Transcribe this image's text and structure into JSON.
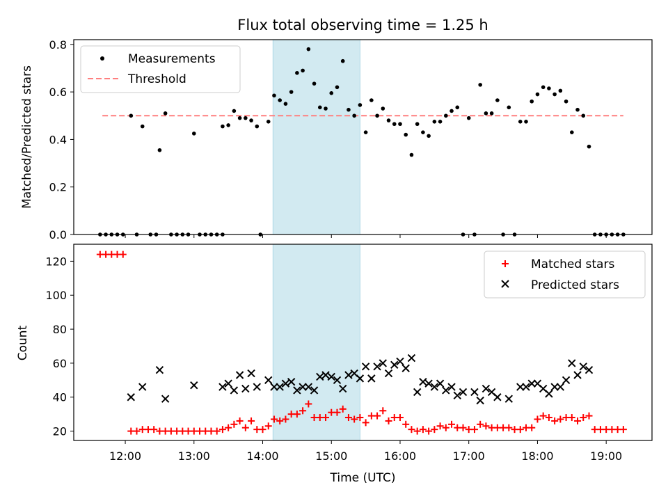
{
  "chart_data": [
    {
      "type": "scatter",
      "title": "Flux total observing time = 1.25 h",
      "xlabel": "",
      "ylabel": "Matched/Predicted stars",
      "xlim": [
        "11:15",
        "19:40"
      ],
      "ylim": [
        0,
        0.82
      ],
      "yticks": [
        "0.0",
        "0.2",
        "0.4",
        "0.6",
        "0.8"
      ],
      "shaded_span": [
        "14:09",
        "15:25"
      ],
      "shaded_color": "#add8e6",
      "legend": {
        "placement": "top-left",
        "entries": [
          "Measurements",
          "Threshold"
        ]
      },
      "threshold": {
        "name": "Threshold",
        "value": 0.5,
        "x_range": [
          "11:40",
          "19:15"
        ],
        "color": "#ff7f7f"
      },
      "series": [
        {
          "name": "Measurements",
          "color": "#000000",
          "points": [
            [
              "11:38",
              0
            ],
            [
              "11:43",
              0
            ],
            [
              "11:48",
              0
            ],
            [
              "11:53",
              0
            ],
            [
              "11:58",
              0
            ],
            [
              "12:05",
              0.5
            ],
            [
              "12:10",
              0
            ],
            [
              "12:15",
              0.455
            ],
            [
              "12:22",
              0
            ],
            [
              "12:27",
              0
            ],
            [
              "12:30",
              0.355
            ],
            [
              "12:35",
              0.51
            ],
            [
              "12:40",
              0
            ],
            [
              "12:45",
              0
            ],
            [
              "12:50",
              0
            ],
            [
              "12:55",
              0
            ],
            [
              "13:00",
              0.425
            ],
            [
              "13:05",
              0
            ],
            [
              "13:10",
              0
            ],
            [
              "13:15",
              0
            ],
            [
              "13:20",
              0
            ],
            [
              "13:25",
              0
            ],
            [
              "13:25",
              0.455
            ],
            [
              "13:30",
              0.46
            ],
            [
              "13:35",
              0.52
            ],
            [
              "13:40",
              0.49
            ],
            [
              "13:45",
              0.49
            ],
            [
              "13:50",
              0.48
            ],
            [
              "13:55",
              0.455
            ],
            [
              "13:58",
              0
            ],
            [
              "14:05",
              0.475
            ],
            [
              "14:10",
              0.585
            ],
            [
              "14:15",
              0.565
            ],
            [
              "14:20",
              0.55
            ],
            [
              "14:25",
              0.6
            ],
            [
              "14:30",
              0.68
            ],
            [
              "14:35",
              0.69
            ],
            [
              "14:40",
              0.78
            ],
            [
              "14:45",
              0.635
            ],
            [
              "14:50",
              0.535
            ],
            [
              "14:55",
              0.53
            ],
            [
              "15:00",
              0.595
            ],
            [
              "15:05",
              0.62
            ],
            [
              "15:10",
              0.73
            ],
            [
              "15:15",
              0.525
            ],
            [
              "15:20",
              0.5
            ],
            [
              "15:25",
              0.545
            ],
            [
              "15:30",
              0.43
            ],
            [
              "15:35",
              0.565
            ],
            [
              "15:40",
              0.5
            ],
            [
              "15:45",
              0.53
            ],
            [
              "15:50",
              0.48
            ],
            [
              "15:55",
              0.465
            ],
            [
              "16:00",
              0.465
            ],
            [
              "16:05",
              0.42
            ],
            [
              "16:10",
              0.335
            ],
            [
              "16:15",
              0.465
            ],
            [
              "16:20",
              0.43
            ],
            [
              "16:25",
              0.415
            ],
            [
              "16:30",
              0.475
            ],
            [
              "16:35",
              0.475
            ],
            [
              "16:40",
              0.5
            ],
            [
              "16:45",
              0.52
            ],
            [
              "16:50",
              0.535
            ],
            [
              "16:55",
              0
            ],
            [
              "17:00",
              0.49
            ],
            [
              "17:05",
              0
            ],
            [
              "17:10",
              0.63
            ],
            [
              "17:15",
              0.51
            ],
            [
              "17:20",
              0.51
            ],
            [
              "17:25",
              0.565
            ],
            [
              "17:30",
              0
            ],
            [
              "17:35",
              0.535
            ],
            [
              "17:40",
              0
            ],
            [
              "17:45",
              0.475
            ],
            [
              "17:50",
              0.475
            ],
            [
              "17:55",
              0.56
            ],
            [
              "18:00",
              0.59
            ],
            [
              "18:05",
              0.62
            ],
            [
              "18:10",
              0.615
            ],
            [
              "18:15",
              0.59
            ],
            [
              "18:20",
              0.605
            ],
            [
              "18:25",
              0.56
            ],
            [
              "18:30",
              0.43
            ],
            [
              "18:35",
              0.525
            ],
            [
              "18:40",
              0.5
            ],
            [
              "18:45",
              0.37
            ],
            [
              "18:50",
              0
            ],
            [
              "18:55",
              0
            ],
            [
              "19:00",
              0
            ],
            [
              "19:05",
              0
            ],
            [
              "19:10",
              0
            ],
            [
              "19:15",
              0
            ]
          ]
        }
      ]
    },
    {
      "type": "scatter",
      "title": "",
      "xlabel": "Time (UTC)",
      "ylabel": "Count",
      "xlim": [
        "11:15",
        "19:40"
      ],
      "ylim": [
        14.5,
        130
      ],
      "yticks": [
        "20",
        "40",
        "60",
        "80",
        "100",
        "120"
      ],
      "xticks": [
        "12:00",
        "13:00",
        "14:00",
        "15:00",
        "16:00",
        "17:00",
        "18:00",
        "19:00"
      ],
      "shaded_span": [
        "14:09",
        "15:25"
      ],
      "shaded_color": "#add8e6",
      "legend": {
        "placement": "top-right",
        "entries": [
          "Matched stars",
          "Predicted stars"
        ]
      },
      "series": [
        {
          "name": "Matched stars",
          "marker": "+",
          "color": "#ff0000",
          "points": [
            [
              "11:38",
              124
            ],
            [
              "11:43",
              124
            ],
            [
              "11:48",
              124
            ],
            [
              "11:53",
              124
            ],
            [
              "11:58",
              124
            ],
            [
              "12:05",
              20
            ],
            [
              "12:10",
              20
            ],
            [
              "12:15",
              21
            ],
            [
              "12:20",
              21
            ],
            [
              "12:25",
              21
            ],
            [
              "12:30",
              20
            ],
            [
              "12:35",
              20
            ],
            [
              "12:40",
              20
            ],
            [
              "12:45",
              20
            ],
            [
              "12:50",
              20
            ],
            [
              "12:55",
              20
            ],
            [
              "13:00",
              20
            ],
            [
              "13:05",
              20
            ],
            [
              "13:10",
              20
            ],
            [
              "13:15",
              20
            ],
            [
              "13:20",
              20
            ],
            [
              "13:25",
              21
            ],
            [
              "13:30",
              22
            ],
            [
              "13:35",
              24
            ],
            [
              "13:40",
              26
            ],
            [
              "13:45",
              22
            ],
            [
              "13:50",
              26
            ],
            [
              "13:55",
              21
            ],
            [
              "14:00",
              21
            ],
            [
              "14:05",
              23
            ],
            [
              "14:10",
              27
            ],
            [
              "14:15",
              26
            ],
            [
              "14:20",
              27
            ],
            [
              "14:25",
              30
            ],
            [
              "14:30",
              30
            ],
            [
              "14:35",
              32
            ],
            [
              "14:40",
              36
            ],
            [
              "14:45",
              28
            ],
            [
              "14:50",
              28
            ],
            [
              "14:55",
              28
            ],
            [
              "15:00",
              31
            ],
            [
              "15:05",
              31
            ],
            [
              "15:10",
              33
            ],
            [
              "15:15",
              28
            ],
            [
              "15:20",
              27
            ],
            [
              "15:25",
              28
            ],
            [
              "15:30",
              25
            ],
            [
              "15:35",
              29
            ],
            [
              "15:40",
              29
            ],
            [
              "15:45",
              32
            ],
            [
              "15:50",
              26
            ],
            [
              "15:55",
              28
            ],
            [
              "16:00",
              28
            ],
            [
              "16:05",
              24
            ],
            [
              "16:10",
              21
            ],
            [
              "16:15",
              20
            ],
            [
              "16:20",
              21
            ],
            [
              "16:25",
              20
            ],
            [
              "16:30",
              21
            ],
            [
              "16:35",
              23
            ],
            [
              "16:40",
              22
            ],
            [
              "16:45",
              24
            ],
            [
              "16:50",
              22
            ],
            [
              "16:55",
              22
            ],
            [
              "17:00",
              21
            ],
            [
              "17:05",
              21
            ],
            [
              "17:10",
              24
            ],
            [
              "17:15",
              23
            ],
            [
              "17:20",
              22
            ],
            [
              "17:25",
              22
            ],
            [
              "17:30",
              22
            ],
            [
              "17:35",
              22
            ],
            [
              "17:40",
              21
            ],
            [
              "17:45",
              21
            ],
            [
              "17:50",
              22
            ],
            [
              "17:55",
              22
            ],
            [
              "18:00",
              27
            ],
            [
              "18:05",
              29
            ],
            [
              "18:10",
              28
            ],
            [
              "18:15",
              26
            ],
            [
              "18:20",
              27
            ],
            [
              "18:25",
              28
            ],
            [
              "18:30",
              28
            ],
            [
              "18:35",
              26
            ],
            [
              "18:40",
              28
            ],
            [
              "18:45",
              29
            ],
            [
              "18:50",
              21
            ],
            [
              "18:55",
              21
            ],
            [
              "19:00",
              21
            ],
            [
              "19:05",
              21
            ],
            [
              "19:10",
              21
            ],
            [
              "19:15",
              21
            ]
          ]
        },
        {
          "name": "Predicted stars",
          "marker": "x",
          "color": "#000000",
          "points": [
            [
              "12:05",
              40
            ],
            [
              "12:15",
              46
            ],
            [
              "12:30",
              56
            ],
            [
              "12:35",
              39
            ],
            [
              "13:00",
              47
            ],
            [
              "13:25",
              46
            ],
            [
              "13:30",
              48
            ],
            [
              "13:35",
              44
            ],
            [
              "13:40",
              53
            ],
            [
              "13:45",
              45
            ],
            [
              "13:50",
              54
            ],
            [
              "13:55",
              46
            ],
            [
              "14:05",
              50
            ],
            [
              "14:10",
              46
            ],
            [
              "14:15",
              46
            ],
            [
              "14:20",
              48
            ],
            [
              "14:25",
              49
            ],
            [
              "14:30",
              44
            ],
            [
              "14:35",
              46
            ],
            [
              "14:40",
              46
            ],
            [
              "14:45",
              44
            ],
            [
              "14:50",
              52
            ],
            [
              "14:55",
              53
            ],
            [
              "15:00",
              52
            ],
            [
              "15:05",
              50
            ],
            [
              "15:10",
              45
            ],
            [
              "15:15",
              53
            ],
            [
              "15:20",
              54
            ],
            [
              "15:25",
              51
            ],
            [
              "15:30",
              58
            ],
            [
              "15:35",
              51
            ],
            [
              "15:40",
              58
            ],
            [
              "15:45",
              60
            ],
            [
              "15:50",
              54
            ],
            [
              "15:55",
              59
            ],
            [
              "16:00",
              61
            ],
            [
              "16:05",
              57
            ],
            [
              "16:10",
              63
            ],
            [
              "16:15",
              43
            ],
            [
              "16:20",
              49
            ],
            [
              "16:25",
              48
            ],
            [
              "16:30",
              46
            ],
            [
              "16:35",
              48
            ],
            [
              "16:40",
              44
            ],
            [
              "16:45",
              46
            ],
            [
              "16:50",
              41
            ],
            [
              "16:55",
              43
            ],
            [
              "17:05",
              43
            ],
            [
              "17:10",
              38
            ],
            [
              "17:15",
              45
            ],
            [
              "17:20",
              43
            ],
            [
              "17:25",
              40
            ],
            [
              "17:35",
              39
            ],
            [
              "17:45",
              46
            ],
            [
              "17:50",
              46
            ],
            [
              "17:55",
              48
            ],
            [
              "18:00",
              48
            ],
            [
              "18:05",
              45
            ],
            [
              "18:10",
              42
            ],
            [
              "18:15",
              46
            ],
            [
              "18:20",
              46
            ],
            [
              "18:25",
              50
            ],
            [
              "18:30",
              60
            ],
            [
              "18:35",
              53
            ],
            [
              "18:40",
              58
            ],
            [
              "18:45",
              56
            ]
          ]
        }
      ]
    }
  ]
}
